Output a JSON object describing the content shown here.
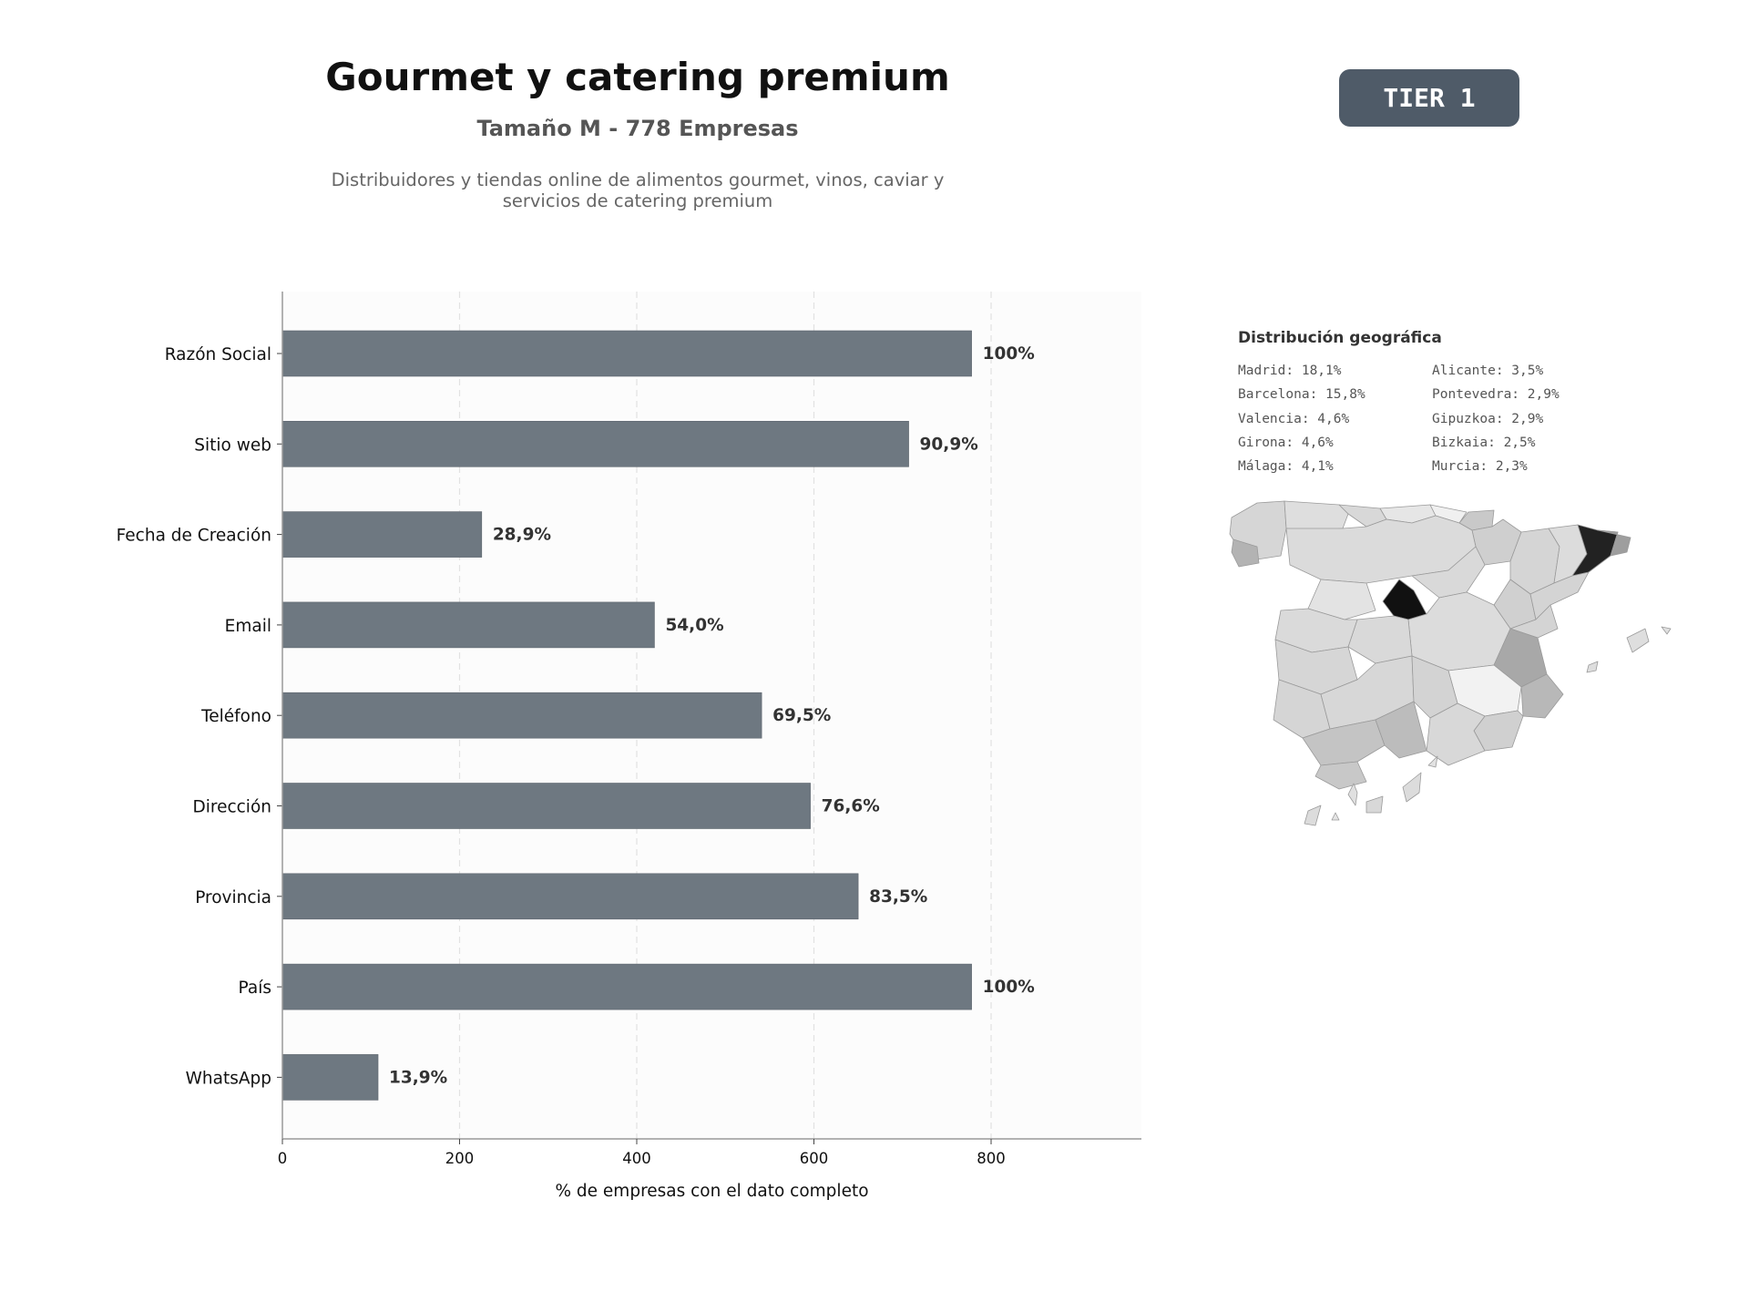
{
  "header": {
    "title": "Gourmet y catering premium",
    "subtitle": "Tamaño M - 778 Empresas",
    "description_lines": [
      "Distribuidores y tiendas online de alimentos gourmet, vinos, caviar y",
      "servicios de catering premium"
    ],
    "tier": "TIER 1"
  },
  "geo": {
    "title": "Distribución geográfica",
    "items": [
      "Madrid: 18,1%",
      "Alicante: 3,5%",
      "Barcelona: 15,8%",
      "Pontevedra: 2,9%",
      "Valencia: 4,6%",
      "Gipuzkoa: 2,9%",
      "Girona: 4,6%",
      "Bizkaia: 2,5%",
      "Málaga: 4,1%",
      "Murcia: 2,3%"
    ]
  },
  "colors": {
    "bar": "#6e7881",
    "badge": "#4f5b68",
    "map_dark": "#111111",
    "map_light": "#e2e2e2"
  },
  "chart_data": {
    "type": "bar",
    "orientation": "horizontal",
    "categories": [
      "Razón Social",
      "Sitio web",
      "Fecha de Creación",
      "Email",
      "Teléfono",
      "Dirección",
      "Provincia",
      "País",
      "WhatsApp"
    ],
    "values": [
      778,
      707,
      225,
      420,
      541,
      596,
      650,
      778,
      108
    ],
    "labels": [
      "100%",
      "90,9%",
      "28,9%",
      "54,0%",
      "69,5%",
      "76,6%",
      "83,5%",
      "100%",
      "13,9%"
    ],
    "xlabel": "% de empresas con el dato completo",
    "xticks": [
      0,
      200,
      400,
      600,
      800
    ],
    "xlim": [
      0,
      972
    ],
    "grid": true
  }
}
